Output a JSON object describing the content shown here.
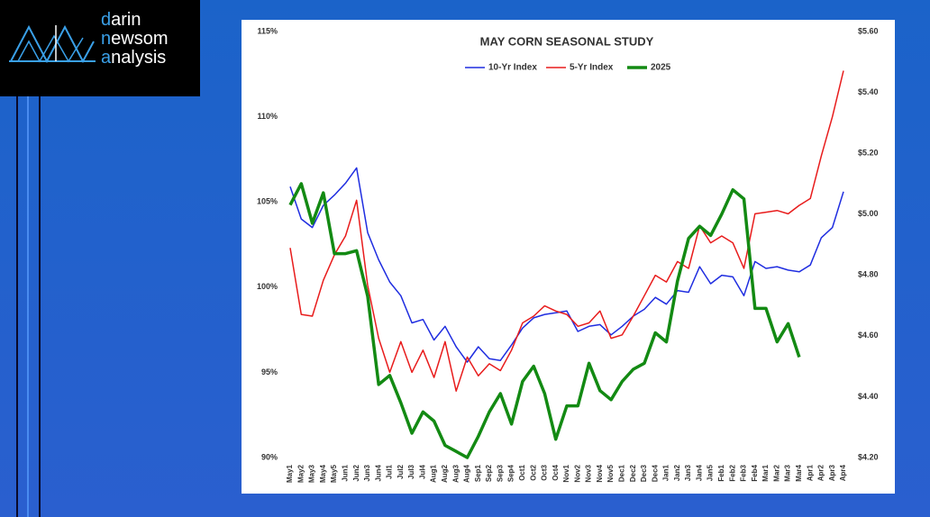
{
  "logo": {
    "lines": [
      "darin",
      "newsom",
      "analysis"
    ]
  },
  "chart_data": {
    "type": "line",
    "title": "MAY CORN SEASONAL STUDY",
    "legend": "top",
    "categories": [
      "May1",
      "May2",
      "May3",
      "May4",
      "May5",
      "Jun1",
      "Jun2",
      "Jun3",
      "Jun4",
      "Jul1",
      "Jul2",
      "Jul3",
      "Jul4",
      "Aug1",
      "Aug2",
      "Aug3",
      "Aug4",
      "Sep1",
      "Sep2",
      "Sep3",
      "Sep4",
      "Oct1",
      "Oct2",
      "Oct3",
      "Oct4",
      "Nov1",
      "Nov2",
      "Nov3",
      "Nov4",
      "Nov5",
      "Dec1",
      "Dec2",
      "Dec3",
      "Dec4",
      "Jan1",
      "Jan2",
      "Jan3",
      "Jan4",
      "Jan5",
      "Feb1",
      "Feb2",
      "Feb3",
      "Feb4",
      "Mar1",
      "Mar2",
      "Mar3",
      "Mar4",
      "Apr1",
      "Apr2",
      "Apr3",
      "Apr4"
    ],
    "series": [
      {
        "name": "10-Yr Index",
        "color": "#1f2de0",
        "width": 1.5,
        "values": [
          105.9,
          104.0,
          103.5,
          104.8,
          105.4,
          106.1,
          107.0,
          103.2,
          101.6,
          100.3,
          99.5,
          97.9,
          98.1,
          96.9,
          97.7,
          96.5,
          95.6,
          96.5,
          95.8,
          95.7,
          96.6,
          97.6,
          98.2,
          98.4,
          98.5,
          98.6,
          97.4,
          97.7,
          97.8,
          97.2,
          97.7,
          98.3,
          98.7,
          99.4,
          99.0,
          99.8,
          99.7,
          101.2,
          100.2,
          100.7,
          100.6,
          99.5,
          101.5,
          101.1,
          101.2,
          101.0,
          100.9,
          101.3,
          102.9,
          103.5,
          105.6
        ]
      },
      {
        "name": "5-Yr Index",
        "color": "#e81c1c",
        "width": 1.5,
        "values": [
          102.3,
          98.4,
          98.3,
          100.4,
          101.9,
          103.0,
          105.1,
          100.1,
          97.0,
          95.0,
          96.8,
          95.0,
          96.3,
          94.7,
          96.8,
          93.9,
          95.9,
          94.8,
          95.5,
          95.1,
          96.3,
          97.9,
          98.3,
          98.9,
          98.6,
          98.4,
          97.7,
          97.9,
          98.6,
          97.0,
          97.2,
          98.3,
          99.5,
          100.7,
          100.3,
          101.5,
          101.1,
          103.6,
          102.6,
          103.0,
          102.6,
          101.1,
          104.3,
          104.4,
          104.5,
          104.3,
          104.8,
          105.2,
          107.7,
          110.0,
          112.7
        ]
      },
      {
        "name": "2025",
        "color": "#138a13",
        "width": 3.5,
        "axis": "y2",
        "values": [
          5.03,
          5.1,
          4.97,
          5.07,
          4.87,
          4.87,
          4.88,
          4.73,
          4.44,
          4.47,
          4.38,
          4.28,
          4.35,
          4.32,
          4.24,
          4.22,
          4.2,
          4.27,
          4.35,
          4.41,
          4.31,
          4.45,
          4.5,
          4.41,
          4.26,
          4.37,
          4.37,
          4.51,
          4.42,
          4.39,
          4.45,
          4.49,
          4.51,
          4.61,
          4.58,
          4.78,
          4.92,
          4.96,
          4.93,
          5.0,
          5.08,
          5.05,
          4.69,
          4.69,
          4.58,
          4.64,
          4.53,
          null,
          null,
          null,
          null
        ]
      }
    ],
    "ylim": [
      90,
      115
    ],
    "yticks": [
      {
        "value": 90,
        "label": "90%"
      },
      {
        "value": 95,
        "label": "95%"
      },
      {
        "value": 100,
        "label": "100%"
      },
      {
        "value": 105,
        "label": "105%"
      },
      {
        "value": 110,
        "label": "110%"
      },
      {
        "value": 115,
        "label": "115%"
      }
    ],
    "y2lim": [
      4.2,
      5.6
    ],
    "y2ticks": [
      {
        "value": 4.2,
        "label": "$4.20"
      },
      {
        "value": 4.4,
        "label": "$4.40"
      },
      {
        "value": 4.6,
        "label": "$4.60"
      },
      {
        "value": 4.8,
        "label": "$4.80"
      },
      {
        "value": 5.0,
        "label": "$5.00"
      },
      {
        "value": 5.2,
        "label": "$5.20"
      },
      {
        "value": 5.4,
        "label": "$5.40"
      },
      {
        "value": 5.6,
        "label": "$5.60"
      }
    ]
  }
}
